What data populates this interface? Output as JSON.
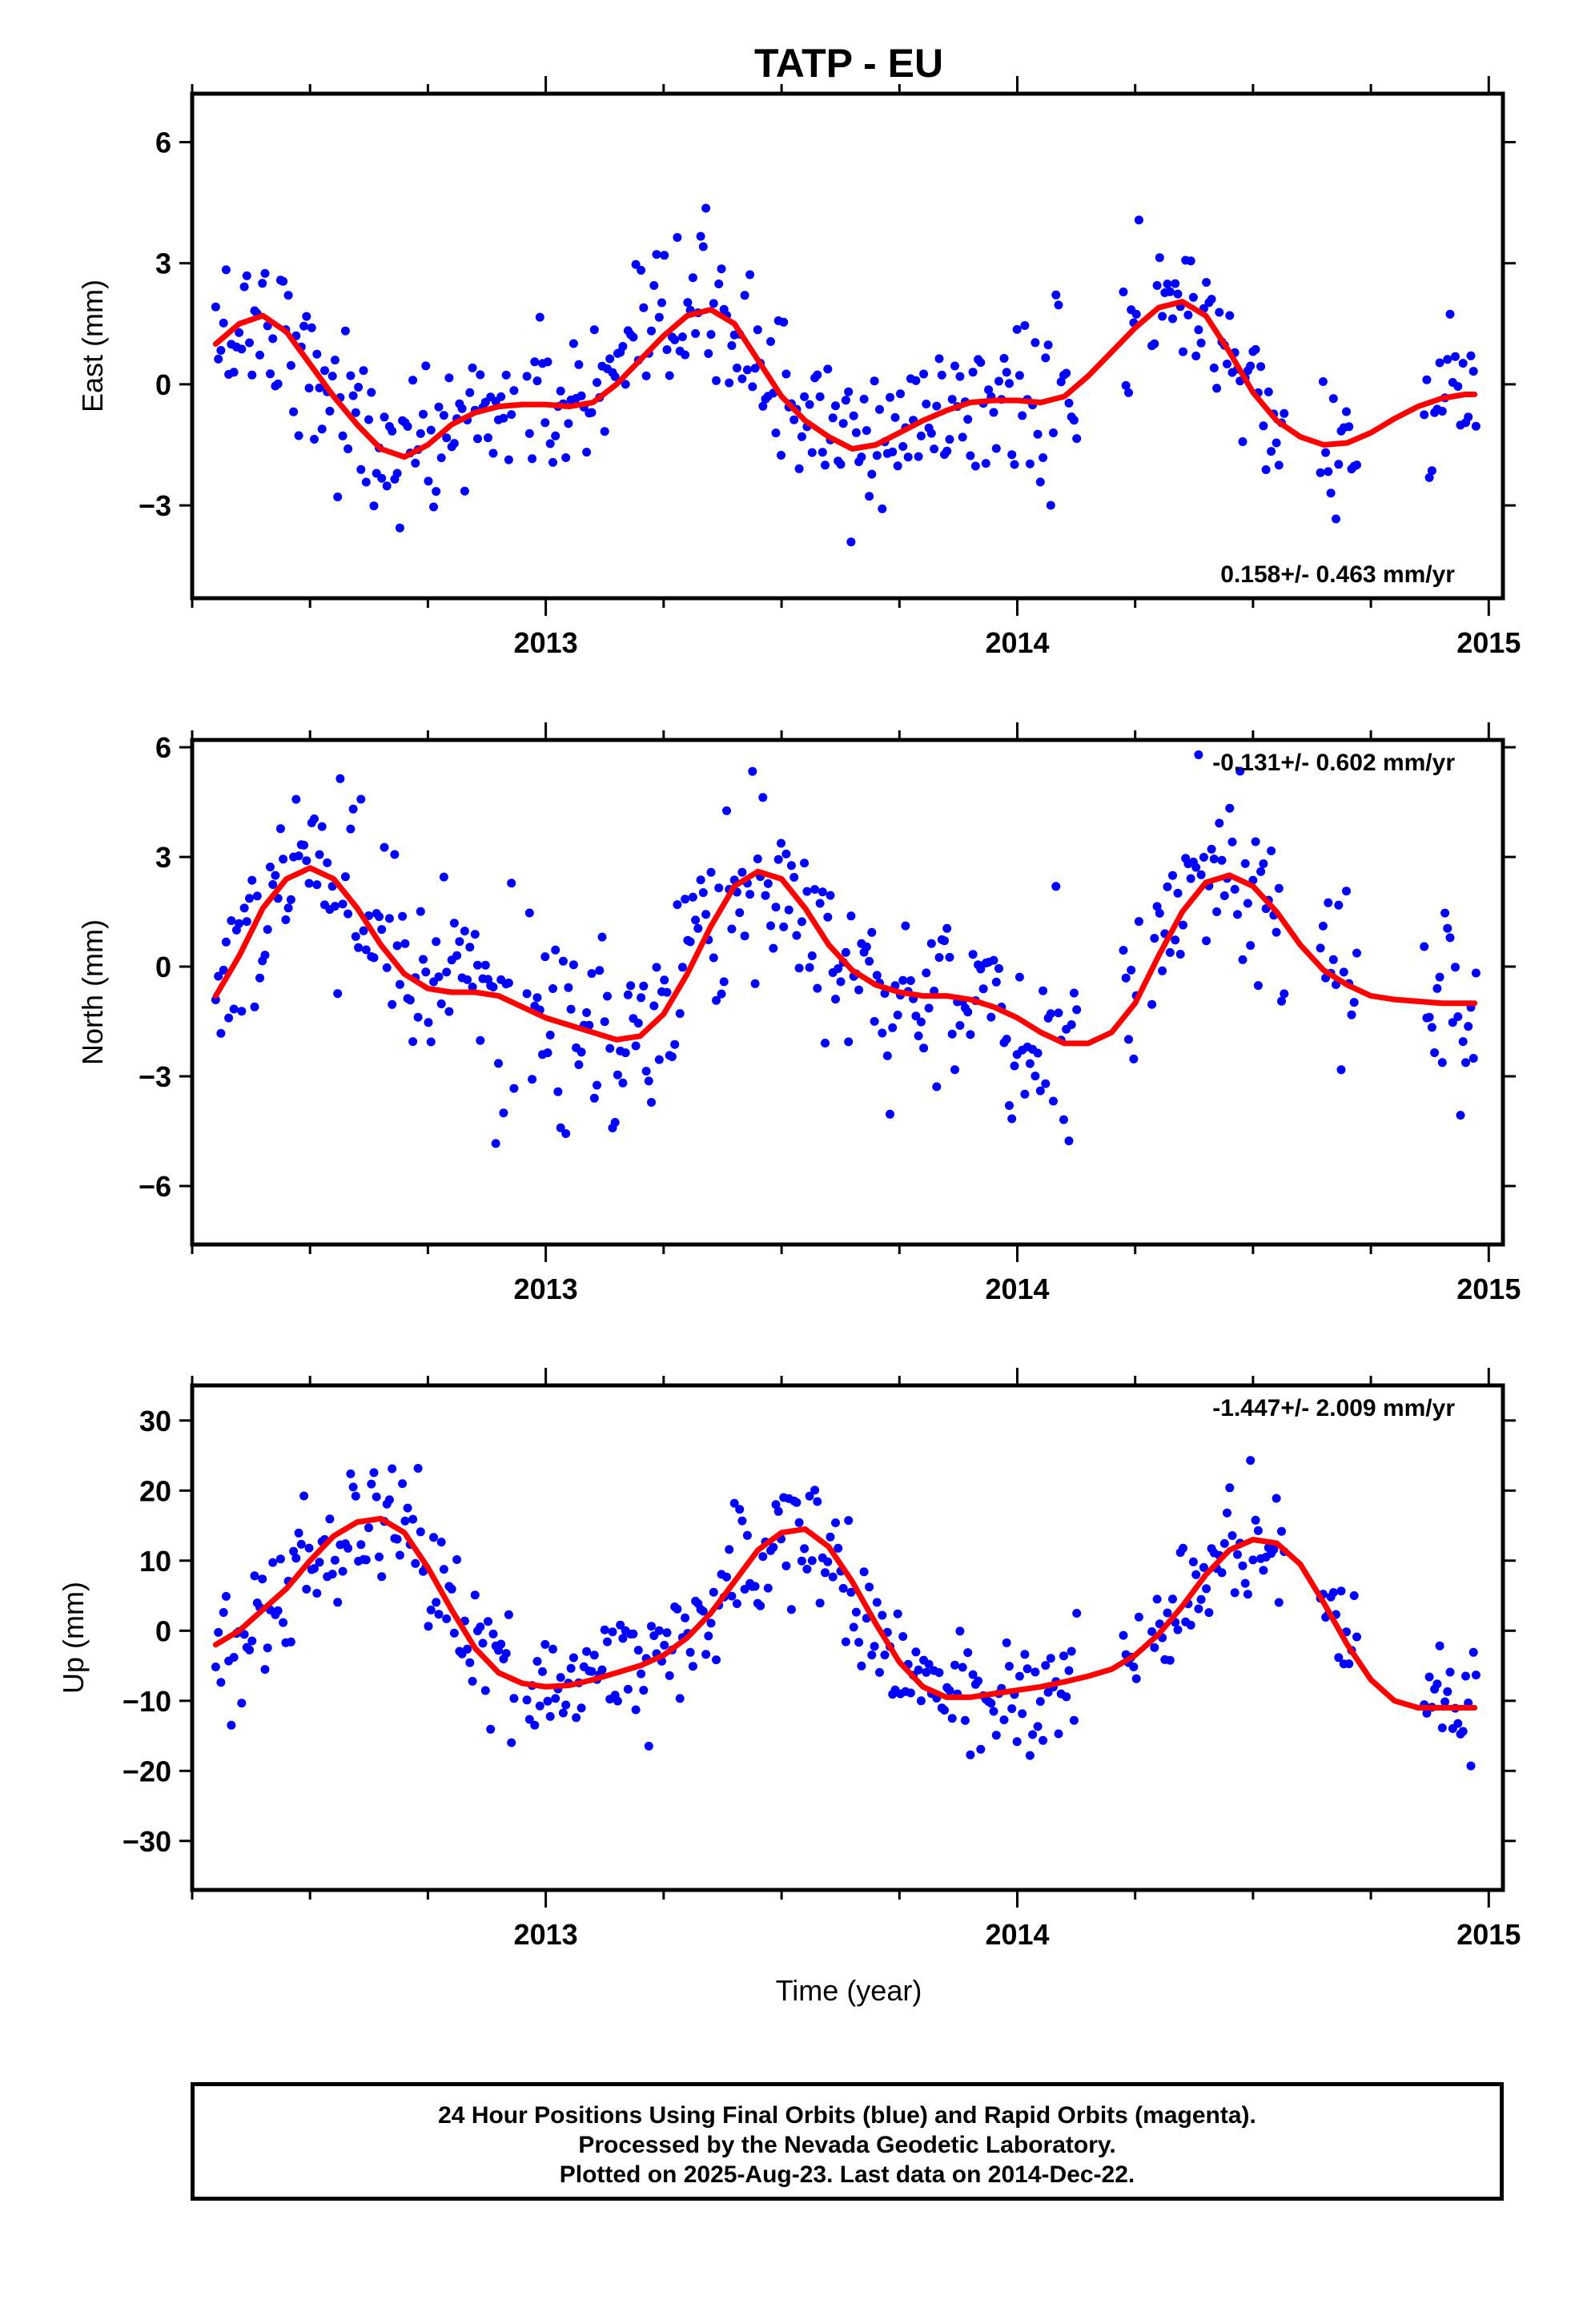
{
  "title": "TATP - EU",
  "xlabel": "Time (year)",
  "caption_lines": [
    "24 Hour Positions Using Final Orbits (blue) and Rapid Orbits (magenta).",
    "Processed by the Nevada Geodetic Laboratory.",
    "Plotted on 2025-Aug-23. Last data on 2014-Dec-22."
  ],
  "colors": {
    "points": "#0000ff",
    "fit": "#ff0000",
    "frame": "#000000"
  },
  "chart_data": [
    {
      "type": "scatter",
      "ylabel": "East (mm)",
      "rate": "0.158+/- 0.463 mm/yr",
      "rate_position": "bottom-right",
      "xlim": [
        2012.25,
        2015.03
      ],
      "ylim": [
        -5.3,
        7.2
      ],
      "x_ticks": [
        2013,
        2014,
        2015
      ],
      "y_ticks": [
        -3,
        0,
        3,
        6
      ],
      "y_tick_labels": [
        "−3",
        "0",
        "3",
        "6"
      ],
      "fit_line": {
        "x": [
          2012.3,
          2012.35,
          2012.4,
          2012.45,
          2012.5,
          2012.55,
          2012.6,
          2012.65,
          2012.7,
          2012.75,
          2012.8,
          2012.85,
          2012.9,
          2012.95,
          2013.0,
          2013.05,
          2013.1,
          2013.15,
          2013.2,
          2013.25,
          2013.3,
          2013.35,
          2013.4,
          2013.45,
          2013.5,
          2013.55,
          2013.6,
          2013.65,
          2013.7,
          2013.75,
          2013.8,
          2013.85,
          2013.9,
          2013.95,
          2014.0,
          2014.05,
          2014.1,
          2014.15,
          2014.2,
          2014.25,
          2014.3,
          2014.35,
          2014.4,
          2014.45,
          2014.5,
          2014.55,
          2014.6,
          2014.65,
          2014.7,
          2014.75,
          2014.8,
          2014.85,
          2014.9,
          2014.95,
          2014.97
        ],
        "y": [
          1.0,
          1.5,
          1.7,
          1.3,
          0.5,
          -0.3,
          -1.0,
          -1.6,
          -1.8,
          -1.5,
          -1.0,
          -0.7,
          -0.55,
          -0.5,
          -0.5,
          -0.55,
          -0.45,
          0.0,
          0.6,
          1.2,
          1.7,
          1.85,
          1.5,
          0.6,
          -0.3,
          -0.9,
          -1.3,
          -1.6,
          -1.5,
          -1.2,
          -0.9,
          -0.65,
          -0.45,
          -0.4,
          -0.4,
          -0.45,
          -0.3,
          0.2,
          0.8,
          1.4,
          1.9,
          2.05,
          1.7,
          0.8,
          -0.2,
          -0.9,
          -1.3,
          -1.5,
          -1.45,
          -1.2,
          -0.85,
          -0.55,
          -0.35,
          -0.25,
          -0.25
        ]
      }
    },
    {
      "type": "scatter",
      "ylabel": "North (mm)",
      "rate": "-0.131+/- 0.602 mm/yr",
      "rate_position": "top-right",
      "xlim": [
        2012.25,
        2015.03
      ],
      "ylim": [
        -7.6,
        6.2
      ],
      "x_ticks": [
        2013,
        2014,
        2015
      ],
      "y_ticks": [
        -6,
        -3,
        0,
        3,
        6
      ],
      "y_tick_labels": [
        "−6",
        "−3",
        "0",
        "3",
        "6"
      ],
      "fit_line": {
        "x": [
          2012.3,
          2012.35,
          2012.4,
          2012.45,
          2012.5,
          2012.55,
          2012.6,
          2012.65,
          2012.7,
          2012.75,
          2012.8,
          2012.85,
          2012.9,
          2012.95,
          2013.0,
          2013.05,
          2013.1,
          2013.15,
          2013.2,
          2013.25,
          2013.3,
          2013.35,
          2013.4,
          2013.45,
          2013.5,
          2013.55,
          2013.6,
          2013.65,
          2013.7,
          2013.75,
          2013.8,
          2013.85,
          2013.9,
          2013.95,
          2014.0,
          2014.05,
          2014.1,
          2014.15,
          2014.2,
          2014.25,
          2014.3,
          2014.35,
          2014.4,
          2014.45,
          2014.5,
          2014.55,
          2014.6,
          2014.65,
          2014.7,
          2014.75,
          2014.8,
          2014.85,
          2014.9,
          2014.95,
          2014.97
        ],
        "y": [
          -0.8,
          0.3,
          1.6,
          2.4,
          2.7,
          2.4,
          1.6,
          0.6,
          -0.2,
          -0.6,
          -0.7,
          -0.7,
          -0.8,
          -1.1,
          -1.4,
          -1.6,
          -1.8,
          -2.0,
          -1.9,
          -1.3,
          -0.2,
          1.1,
          2.2,
          2.6,
          2.4,
          1.6,
          0.6,
          -0.1,
          -0.5,
          -0.7,
          -0.8,
          -0.8,
          -0.9,
          -1.1,
          -1.4,
          -1.8,
          -2.1,
          -2.1,
          -1.8,
          -1.0,
          0.3,
          1.5,
          2.3,
          2.5,
          2.2,
          1.5,
          0.6,
          -0.1,
          -0.5,
          -0.8,
          -0.9,
          -0.95,
          -1.0,
          -1.0,
          -1.0
        ]
      }
    },
    {
      "type": "scatter",
      "ylabel": "Up (mm)",
      "rate": "-1.447+/- 2.009 mm/yr",
      "rate_position": "top-right",
      "xlim": [
        2012.25,
        2015.03
      ],
      "ylim": [
        -37,
        35
      ],
      "x_ticks": [
        2013,
        2014,
        2015
      ],
      "y_ticks": [
        -30,
        -20,
        -10,
        0,
        10,
        20,
        30
      ],
      "y_tick_labels": [
        "−30",
        "−20",
        "−10",
        "0",
        "10",
        "20",
        "30"
      ],
      "fit_line": {
        "x": [
          2012.3,
          2012.35,
          2012.4,
          2012.45,
          2012.5,
          2012.55,
          2012.6,
          2012.65,
          2012.7,
          2012.75,
          2012.8,
          2012.85,
          2012.9,
          2012.95,
          2013.0,
          2013.05,
          2013.1,
          2013.15,
          2013.2,
          2013.25,
          2013.3,
          2013.35,
          2013.4,
          2013.45,
          2013.5,
          2013.55,
          2013.6,
          2013.65,
          2013.7,
          2013.75,
          2013.8,
          2013.85,
          2013.9,
          2013.95,
          2014.0,
          2014.05,
          2014.1,
          2014.15,
          2014.2,
          2014.25,
          2014.3,
          2014.35,
          2014.4,
          2014.45,
          2014.5,
          2014.55,
          2014.6,
          2014.65,
          2014.7,
          2014.75,
          2014.8,
          2014.85,
          2014.9,
          2014.95,
          2014.97
        ],
        "y": [
          -2,
          0,
          3,
          6,
          10,
          13.5,
          15.5,
          16,
          14,
          9,
          3,
          -2.5,
          -6,
          -7.5,
          -8,
          -7.8,
          -7,
          -6,
          -5,
          -3.5,
          -1,
          2.5,
          7,
          11.5,
          14,
          14.5,
          12,
          7,
          1,
          -4.5,
          -8,
          -9.5,
          -9.5,
          -9,
          -8.5,
          -8,
          -7.3,
          -6.5,
          -5.5,
          -3.5,
          -0.5,
          3.5,
          8,
          11.5,
          13,
          12.5,
          9.5,
          4,
          -2,
          -7,
          -10,
          -11,
          -11,
          -11,
          -11
        ]
      }
    }
  ]
}
